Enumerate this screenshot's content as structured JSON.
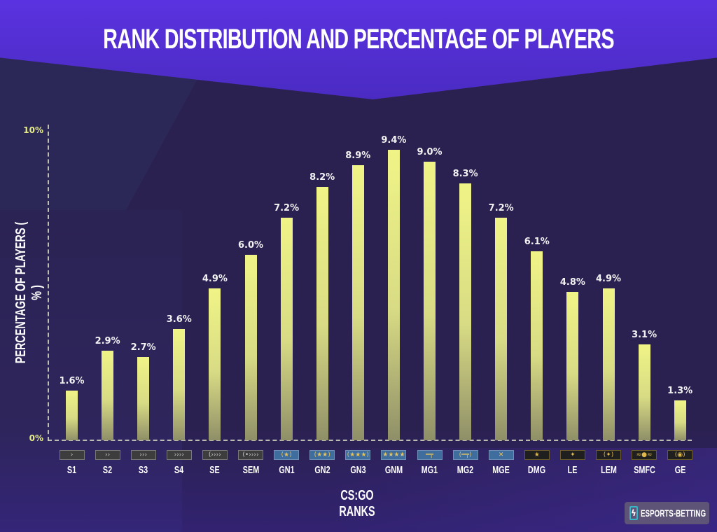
{
  "header": {
    "title": "RANK DISTRIBUTION AND PERCENTAGE OF PLAYERS"
  },
  "axes": {
    "ylabel": "PERCENTAGE OF PLAYERS ( % )",
    "xlabel": "CS:GO RANKS",
    "ytick_top": "10%",
    "ytick_bottom": "0%"
  },
  "logo": {
    "icon": "lightning-bolt-icon",
    "text": "ESPORTS-BETTING"
  },
  "colors": {
    "bar_top": "#f0f486",
    "bar_bottom": "#8f8f68",
    "background": "#2b2150",
    "header": "#5b32e0",
    "value_label": "#f1f1f1",
    "tick": "#e5ec86"
  },
  "chart_data": {
    "type": "bar",
    "title": "RANK DISTRIBUTION AND PERCENTAGE OF PLAYERS",
    "xlabel": "CS:GO RANKS",
    "ylabel": "PERCENTAGE OF PLAYERS ( % )",
    "ylim": [
      0,
      10
    ],
    "yticks": [
      "0%",
      "10%"
    ],
    "grid": false,
    "legend": null,
    "categories": [
      "S1",
      "S2",
      "S3",
      "S4",
      "SE",
      "SEM",
      "GN1",
      "GN2",
      "GN3",
      "GNM",
      "MG1",
      "MG2",
      "MGE",
      "DMG",
      "LE",
      "LEM",
      "SMFC",
      "GE"
    ],
    "values": [
      1.6,
      2.9,
      2.7,
      3.6,
      4.9,
      6.0,
      7.2,
      8.2,
      8.9,
      9.4,
      9.0,
      8.3,
      7.2,
      6.1,
      4.8,
      4.9,
      3.1,
      1.3
    ],
    "value_labels": [
      "1.6%",
      "2.9%",
      "2.7%",
      "3.6%",
      "4.9%",
      "6.0%",
      "7.2%",
      "8.2%",
      "8.9%",
      "9.4%",
      "9.0%",
      "8.3%",
      "7.2%",
      "6.1%",
      "4.8%",
      "4.9%",
      "3.1%",
      "1.3%"
    ],
    "badges": [
      {
        "glyph": "›",
        "style": "silver"
      },
      {
        "glyph": "››",
        "style": "silver"
      },
      {
        "glyph": "›››",
        "style": "silver"
      },
      {
        "glyph": "››››",
        "style": "silver"
      },
      {
        "glyph": "(››››",
        "style": "silver"
      },
      {
        "glyph": "(•››››",
        "style": "silver"
      },
      {
        "glyph": "(★)",
        "style": "blue"
      },
      {
        "glyph": "(★★)",
        "style": "blue"
      },
      {
        "glyph": "(★★★)",
        "style": "blue"
      },
      {
        "glyph": "★★★★",
        "style": "blue"
      },
      {
        "glyph": "═╤",
        "style": "blue"
      },
      {
        "glyph": "(═╤)",
        "style": "blue"
      },
      {
        "glyph": "✕",
        "style": "blue"
      },
      {
        "glyph": "★",
        "style": "gold"
      },
      {
        "glyph": "✦",
        "style": "gold"
      },
      {
        "glyph": "(✦)",
        "style": "gold"
      },
      {
        "glyph": "≈●≈",
        "style": "gold"
      },
      {
        "glyph": "(◉)",
        "style": "gold"
      }
    ]
  }
}
